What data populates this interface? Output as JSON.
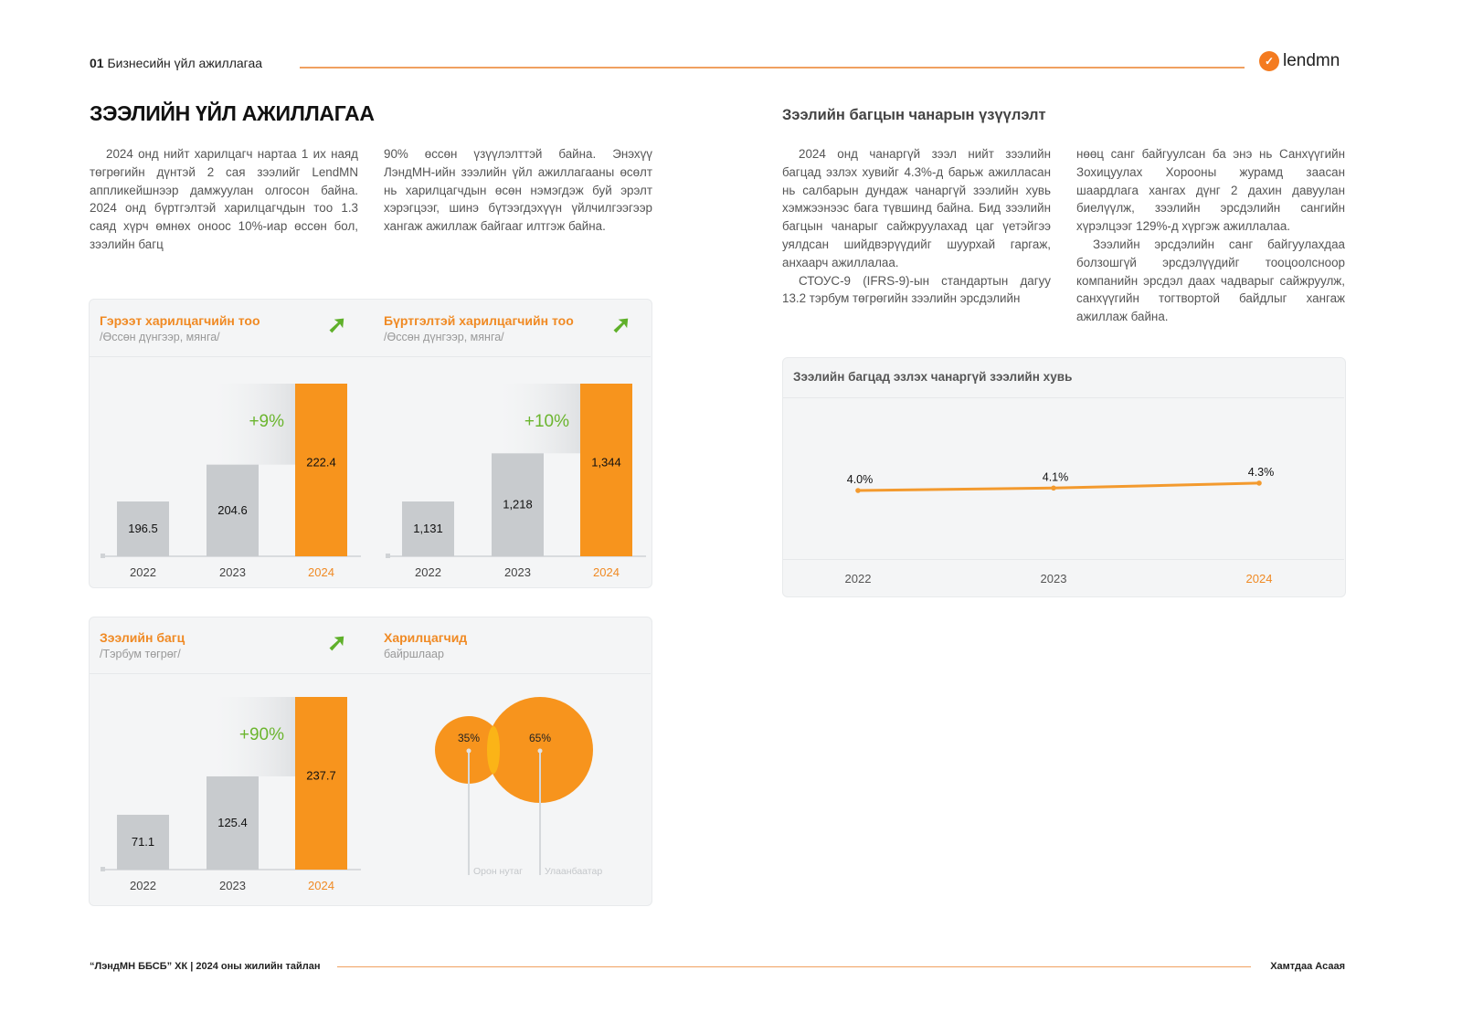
{
  "header": {
    "section_number": "01",
    "section_title": "Бизнесийн үйл ажиллагаа",
    "logo_text": "lendmn",
    "accent": "#f47b20"
  },
  "left": {
    "title": "ЗЭЭЛИЙН ҮЙЛ АЖИЛЛАГАА",
    "col1": "2024 онд нийт харилцагч нартаа 1 их наяд төгрөгийн дүнтэй 2 сая зээлийг LendMN аппликейшнээр дамжуулан олгосон байна. 2024 онд бүртгэлтэй харилцагчдын тоо 1.3 саяд хүрч өмнөх оноос 10%-иар өссөн бол, зээлийн багц",
    "col2": "90% өссөн үзүүлэлттэй байна. Энэхүү ЛэндМН-ийн зээлийн үйл ажиллагааны өсөлт нь харилцагчдын өсөн нэмэгдэж буй эрэлт хэрэгцээг, шинэ бүтээгдэхүүн үйлчилгээгээр хангаж ажиллаж байгааг илтгэж байна."
  },
  "right": {
    "title": "Зээлийн багцын чанарын үзүүлэлт",
    "col1_p1": "2024 онд чанаргүй зээл нийт зээлийн багцад эзлэх хувийг 4.3%-д барьж ажилласан нь салбарын дундаж чанаргүй зээлийн хувь хэмжээнээс бага түвшинд байна. Бид зээлийн багцын чанарыг сайжруулахад цаг үетэйгээ уялдсан шийдвэрүүдийг шуурхай гаргаж, анхаарч ажиллалаа.",
    "col1_p2": "СТОУС-9 (IFRS-9)-ын стандартын дагуу 13.2 тэрбум төгрөгийн зээлийн эрсдэлийн",
    "col2_p1": "нөөц санг байгуулсан ба энэ нь Санхүүгийн Зохицуулах Хорооны журамд заасан шаардлага хангах дүнг 2 дахин давуулан биелүүлж, зээлийн эрсдэлийн сангийн хүрэлцээг 129%-д хүргэж ажиллалаа.",
    "col2_p2": "Зээлийн эрсдэлийн санг байгуулахдаа болзошгүй эрсдэлүүдийг тооцоолсноор компанийн эрсдэл даах чадварыг сайжруулж, санхүүгийн тогтвортой байдлыг хангаж ажиллаж байна."
  },
  "footer": {
    "left": "“ЛэндМН ББСБ” ХК | 2024 оны жилийн тайлан",
    "right": "Хамтдаа Асаая"
  },
  "chart_data": [
    {
      "type": "bar",
      "title": "Гэрээт харилцагчийн тоо",
      "subtitle": "/Өссөн дүнгээр, мянга/",
      "trend_icon": "arrow-up-right",
      "categories": [
        "2022",
        "2023",
        "2024"
      ],
      "values": [
        196.5,
        204.6,
        222.4
      ],
      "labels": [
        "196.5",
        "204.6",
        "222.4"
      ],
      "growth_label": "+9%",
      "colors": {
        "past": "#c8cbce",
        "current": "#f7941d",
        "growth": "#6bb52e"
      }
    },
    {
      "type": "bar",
      "title": "Бүртгэлтэй харилцагчийн тоо",
      "subtitle": "/Өссөн дүнгээр, мянга/",
      "trend_icon": "arrow-up-right",
      "categories": [
        "2022",
        "2023",
        "2024"
      ],
      "values": [
        1131,
        1218,
        1344
      ],
      "labels": [
        "1,131",
        "1,218",
        "1,344"
      ],
      "growth_label": "+10%",
      "colors": {
        "past": "#c8cbce",
        "current": "#f7941d",
        "growth": "#6bb52e"
      }
    },
    {
      "type": "bar",
      "title": "Зээлийн багц",
      "subtitle": "/Тэрбум төгрөг/",
      "trend_icon": "arrow-up-right",
      "categories": [
        "2022",
        "2023",
        "2024"
      ],
      "values": [
        71.1,
        125.4,
        237.7
      ],
      "labels": [
        "71.1",
        "125.4",
        "237.7"
      ],
      "growth_label": "+90%",
      "colors": {
        "past": "#c8cbce",
        "current": "#f7941d",
        "growth": "#6bb52e"
      }
    },
    {
      "type": "pie",
      "subtitle_style": "venn",
      "title": "Харилцагчид",
      "subtitle": "байршлаар",
      "slices": [
        {
          "name": "Орон нутаг",
          "value": 35,
          "label": "35%"
        },
        {
          "name": "Улаанбаатар",
          "value": 65,
          "label": "65%"
        }
      ],
      "colors": {
        "fill": "#f7941d",
        "overlap": "#fbb417"
      }
    },
    {
      "type": "line",
      "title": "Зээлийн багцад эзлэх чанаргүй зээлийн хувь",
      "categories": [
        "2022",
        "2023",
        "2024"
      ],
      "values": [
        4.0,
        4.1,
        4.3
      ],
      "labels": [
        "4.0%",
        "4.1%",
        "4.3%"
      ],
      "colors": {
        "line": "#f39a2e"
      }
    }
  ]
}
